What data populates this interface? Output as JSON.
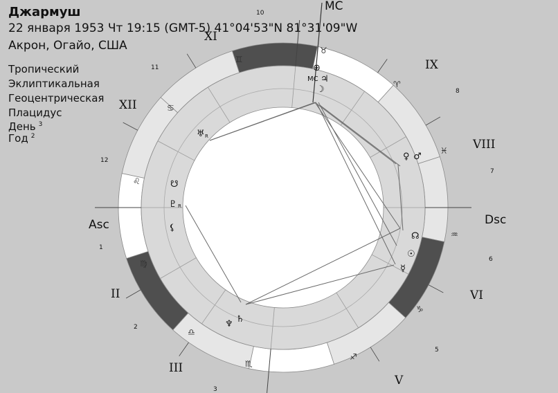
{
  "header": {
    "name": "Джармуш",
    "date_line": "22 января 1953  Чт  19:15 (GMT-5) 41°04'53\"N  81°31'09\"W",
    "place": "Акрон, Огайо, США"
  },
  "settings": {
    "zodiac": "Тропический",
    "coordinates": "Эклиптикальная",
    "perspective": "Геоцентрическая",
    "houses": "Плацидус",
    "day_label": "День",
    "day_value": "3",
    "year_label": "Год",
    "year_value": "2"
  },
  "axes": {
    "mc": "MC",
    "asc": "Asc",
    "dsc": "Dsc"
  },
  "houses_roman": [
    "II",
    "III",
    "V",
    "VI",
    "VIII",
    "IX",
    "XII",
    "XI"
  ],
  "house_numbers": [
    "1",
    "2",
    "3",
    "5",
    "6",
    "7",
    "8",
    "10",
    "11",
    "12"
  ],
  "zodiac_signs": [
    {
      "name": "taurus",
      "glyph": "♉"
    },
    {
      "name": "aries",
      "glyph": "♈"
    },
    {
      "name": "pisces",
      "glyph": "♓"
    },
    {
      "name": "aquarius",
      "glyph": "♒"
    },
    {
      "name": "capricorn",
      "glyph": "♑"
    },
    {
      "name": "sagittarius",
      "glyph": "♐"
    },
    {
      "name": "scorpio",
      "glyph": "♏"
    },
    {
      "name": "libra",
      "glyph": "♎"
    },
    {
      "name": "virgo",
      "glyph": "♍"
    },
    {
      "name": "leo",
      "glyph": "♌"
    },
    {
      "name": "cancer",
      "glyph": "♋"
    },
    {
      "name": "gemini",
      "glyph": "♊"
    }
  ],
  "planets": [
    {
      "name": "part-of-fortune",
      "glyph": "⊕"
    },
    {
      "name": "mc-label",
      "glyph": "MC"
    },
    {
      "name": "jupiter",
      "glyph": "♃"
    },
    {
      "name": "moon",
      "glyph": "☽"
    },
    {
      "name": "venus",
      "glyph": "♀"
    },
    {
      "name": "mars",
      "glyph": "♂"
    },
    {
      "name": "north-node",
      "glyph": "☊"
    },
    {
      "name": "sun",
      "glyph": "☉"
    },
    {
      "name": "mercury",
      "glyph": "☿"
    },
    {
      "name": "saturn",
      "glyph": "♄"
    },
    {
      "name": "neptune",
      "glyph": "♆"
    },
    {
      "name": "lilith",
      "glyph": "⚸"
    },
    {
      "name": "pluto",
      "glyph": "♇"
    },
    {
      "name": "south-node",
      "glyph": "☋"
    },
    {
      "name": "uranus",
      "glyph": "♅"
    }
  ],
  "retrograde_marker": "R",
  "colors": {
    "background": "#c9c9c9",
    "wheel_light": "#e6e6e6",
    "wheel_white": "#ffffff",
    "wheel_dark": "#4f4f4f",
    "inner_ring": "#d9d9d9"
  }
}
